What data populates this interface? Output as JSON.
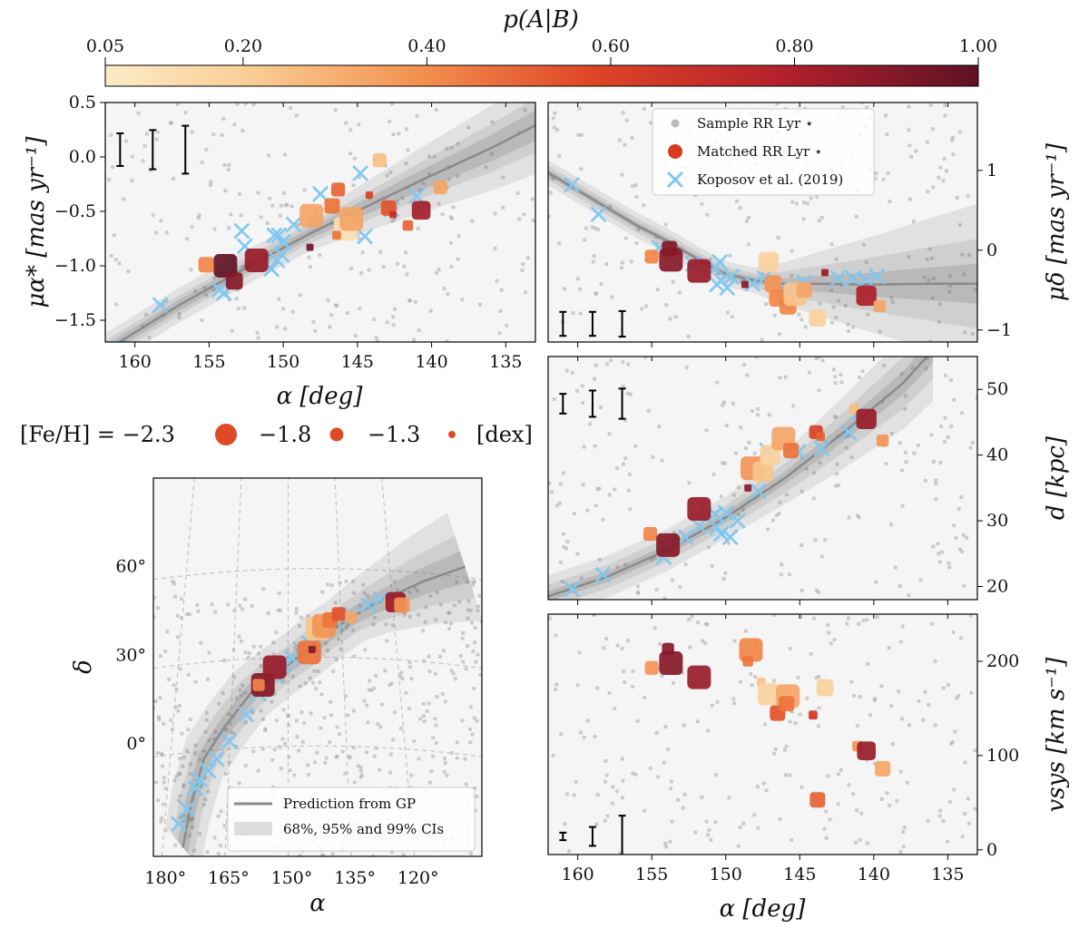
{
  "colorbar": {
    "title": "p(A|B)",
    "ticks": [
      "0.05",
      "0.20",
      "0.40",
      "0.60",
      "0.80",
      "1.00"
    ],
    "tick_values": [
      0.05,
      0.2,
      0.4,
      0.6,
      0.8,
      1.0
    ],
    "colors": [
      "#fcebc7",
      "#f7b97a",
      "#ef7b3e",
      "#d93a1f",
      "#a81d2a",
      "#5e1224"
    ]
  },
  "colors": {
    "sample": "#999999",
    "koposov": "#7fc8f2",
    "gp_line": "#8a8a8a",
    "ci": "#5a5a5a",
    "panel_bg": "#f5f5f5"
  },
  "legend_top": {
    "sample": "Sample RR Lyr ⋆",
    "matched": "Matched RR Lyr ⋆",
    "koposov": "Koposov et al. (2019)"
  },
  "legend_sky": {
    "gp": "Prediction from GP",
    "ci": "68%, 95% and 99% CIs"
  },
  "feh_legend": {
    "label": "[Fe/H] = −2.3",
    "v2": "−1.8",
    "v3": "−1.3",
    "unit": "[dex]"
  },
  "chart_data": [
    {
      "id": "pm_ra",
      "type": "scatter",
      "xlabel": "α [deg]",
      "ylabel": "μα* [mas yr⁻¹]",
      "xlim": [
        162,
        133
      ],
      "ylim": [
        -1.7,
        0.5
      ],
      "xticks": [
        160,
        155,
        150,
        145,
        140,
        135
      ],
      "yticks": [
        -1.5,
        -1.0,
        -0.5,
        0.0,
        0.5
      ],
      "ytick_labels": [
        "−1.5",
        "−1.0",
        "−0.5",
        "0.0",
        "0.5"
      ],
      "gp": [
        [
          162,
          -1.78
        ],
        [
          157,
          -1.36
        ],
        [
          152,
          -0.98
        ],
        [
          148,
          -0.69
        ],
        [
          144,
          -0.43
        ],
        [
          140,
          -0.17
        ],
        [
          136,
          0.08
        ],
        [
          133,
          0.29
        ]
      ],
      "ci_width": [
        0.05,
        0.09,
        0.16
      ],
      "error_bars": [
        {
          "x": 161,
          "half": 0.15
        },
        {
          "x": 158.8,
          "half": 0.18
        },
        {
          "x": 156.6,
          "half": 0.22
        }
      ],
      "koposov": [
        [
          161,
          -1.75
        ],
        [
          158.3,
          -1.36
        ],
        [
          154.3,
          -1.22
        ],
        [
          154,
          -1.25
        ],
        [
          152.8,
          -0.68
        ],
        [
          152.6,
          -0.82
        ],
        [
          151.2,
          -0.98
        ],
        [
          150.8,
          -1.03
        ],
        [
          150.6,
          -0.72
        ],
        [
          150.4,
          -0.95
        ],
        [
          150.3,
          -0.72
        ],
        [
          150.1,
          -0.9
        ],
        [
          150,
          -0.78
        ],
        [
          149.3,
          -0.62
        ],
        [
          147.5,
          -0.34
        ],
        [
          144.8,
          -0.15
        ],
        [
          144.5,
          -0.73
        ],
        [
          142.7,
          -0.48
        ],
        [
          141,
          -0.36
        ]
      ],
      "matched": [
        {
          "x": 153.9,
          "y": -1.0,
          "p": 1.0,
          "feh": -2.3
        },
        {
          "x": 151.8,
          "y": -0.95,
          "p": 0.85,
          "feh": -2.3
        },
        {
          "x": 153.3,
          "y": -1.14,
          "p": 0.9,
          "feh": -1.9
        },
        {
          "x": 155.2,
          "y": -0.99,
          "p": 0.4,
          "feh": -1.8
        },
        {
          "x": 148.1,
          "y": -0.54,
          "p": 0.3,
          "feh": -2.3
        },
        {
          "x": 145.8,
          "y": -0.66,
          "p": 0.1,
          "feh": -2.3
        },
        {
          "x": 145.4,
          "y": -0.57,
          "p": 0.3,
          "feh": -2.3
        },
        {
          "x": 146.7,
          "y": -0.45,
          "p": 0.45,
          "feh": -1.8
        },
        {
          "x": 146.3,
          "y": -0.3,
          "p": 0.5,
          "feh": -1.7
        },
        {
          "x": 143.5,
          "y": -0.03,
          "p": 0.22,
          "feh": -1.7
        },
        {
          "x": 142.9,
          "y": -0.47,
          "p": 0.55,
          "feh": -1.8
        },
        {
          "x": 140.7,
          "y": -0.49,
          "p": 0.82,
          "feh": -2.0
        },
        {
          "x": 139.4,
          "y": -0.28,
          "p": 0.3,
          "feh": -1.7
        },
        {
          "x": 141.6,
          "y": -0.63,
          "p": 0.5,
          "feh": -1.5
        },
        {
          "x": 146.4,
          "y": -0.72,
          "p": 0.45,
          "feh": -1.4
        },
        {
          "x": 144.2,
          "y": -0.35,
          "p": 0.6,
          "feh": -1.3
        },
        {
          "x": 142.6,
          "y": -0.53,
          "p": 0.7,
          "feh": -1.3
        },
        {
          "x": 148.2,
          "y": -0.83,
          "p": 0.95,
          "feh": -1.3
        }
      ]
    },
    {
      "id": "pm_dec",
      "type": "scatter",
      "ylabel": "μδ [mas yr⁻¹]",
      "xlim": [
        162,
        133
      ],
      "ylim": [
        -1.15,
        1.85
      ],
      "xticks": [
        160,
        155,
        150,
        145,
        140,
        135
      ],
      "yticks": [
        -1,
        0,
        1
      ],
      "ytick_labels": [
        "−1",
        "0",
        "1"
      ],
      "gp": [
        [
          162,
          0.97
        ],
        [
          160,
          0.75
        ],
        [
          158,
          0.53
        ],
        [
          156,
          0.31
        ],
        [
          154,
          0.12
        ],
        [
          152,
          -0.1
        ],
        [
          150,
          -0.3
        ],
        [
          148,
          -0.38
        ],
        [
          146,
          -0.42
        ],
        [
          144,
          -0.42
        ],
        [
          140,
          -0.43
        ],
        [
          136,
          -0.42
        ],
        [
          133,
          -0.42
        ]
      ],
      "ci_width": [
        0.04,
        0.09,
        0.16
      ],
      "error_bars": [
        {
          "x": 161,
          "half": 0.15
        },
        {
          "x": 159,
          "half": 0.15
        },
        {
          "x": 157,
          "half": 0.16
        }
      ],
      "koposov": [
        [
          160.4,
          0.82
        ],
        [
          158.6,
          0.45
        ],
        [
          154.5,
          0.03
        ],
        [
          152.2,
          -0.17
        ],
        [
          150.7,
          -0.22
        ],
        [
          150.6,
          -0.43
        ],
        [
          150.4,
          -0.15
        ],
        [
          150.3,
          -0.38
        ],
        [
          149.9,
          -0.47
        ],
        [
          149.6,
          -0.33
        ],
        [
          148.2,
          -0.42
        ],
        [
          147.4,
          -0.35
        ],
        [
          146,
          -0.48
        ],
        [
          145.3,
          -0.55
        ],
        [
          144.7,
          -0.4
        ],
        [
          142.4,
          -0.35
        ],
        [
          141.4,
          -0.35
        ],
        [
          140.5,
          -0.37
        ],
        [
          139.8,
          -0.33
        ]
      ],
      "matched": [
        {
          "x": 153.8,
          "y": 0.02,
          "p": 0.9,
          "feh": -1.8
        },
        {
          "x": 153.7,
          "y": -0.12,
          "p": 0.9,
          "feh": -2.3
        },
        {
          "x": 155,
          "y": -0.08,
          "p": 0.4,
          "feh": -1.7
        },
        {
          "x": 151.8,
          "y": -0.26,
          "p": 0.85,
          "feh": -2.3
        },
        {
          "x": 148.7,
          "y": -0.43,
          "p": 0.9,
          "feh": -1.3
        },
        {
          "x": 147.1,
          "y": -0.15,
          "p": 0.15,
          "feh": -2.1
        },
        {
          "x": 146.8,
          "y": -0.42,
          "p": 0.35,
          "feh": -1.9
        },
        {
          "x": 146.5,
          "y": -0.6,
          "p": 0.4,
          "feh": -1.9
        },
        {
          "x": 145.8,
          "y": -0.7,
          "p": 0.4,
          "feh": -1.9
        },
        {
          "x": 145.3,
          "y": -0.55,
          "p": 0.2,
          "feh": -2.3
        },
        {
          "x": 144.7,
          "y": -0.5,
          "p": 0.3,
          "feh": -1.8
        },
        {
          "x": 143.8,
          "y": -0.85,
          "p": 0.15,
          "feh": -1.9
        },
        {
          "x": 143.3,
          "y": -0.28,
          "p": 0.85,
          "feh": -1.3
        },
        {
          "x": 140.5,
          "y": -0.57,
          "p": 0.8,
          "feh": -2.1
        },
        {
          "x": 139.6,
          "y": -0.7,
          "p": 0.3,
          "feh": -1.6
        }
      ]
    },
    {
      "id": "dist",
      "type": "scatter",
      "ylabel": "d [kpc]",
      "xlim": [
        162,
        133
      ],
      "ylim": [
        18,
        55
      ],
      "xticks": [
        160,
        155,
        150,
        145,
        140,
        135
      ],
      "yticks": [
        20,
        30,
        40,
        50
      ],
      "ytick_labels": [
        "20",
        "30",
        "40",
        "50"
      ],
      "gp": [
        [
          162,
          18.5
        ],
        [
          158,
          21.5
        ],
        [
          154,
          25.5
        ],
        [
          150,
          30.5
        ],
        [
          146,
          36.5
        ],
        [
          142,
          43.5
        ],
        [
          138,
          51
        ],
        [
          136,
          56
        ]
      ],
      "ci_width": [
        0.8,
        1.8,
        3.2
      ],
      "error_bars": [
        {
          "x": 161,
          "half": 1.5
        },
        {
          "x": 159,
          "half": 2.0
        },
        {
          "x": 157,
          "half": 2.3
        }
      ],
      "koposov": [
        [
          160.4,
          19.6
        ],
        [
          158.3,
          21.8
        ],
        [
          154.2,
          24.5
        ],
        [
          152.7,
          27.5
        ],
        [
          151.8,
          29.2
        ],
        [
          150.7,
          31
        ],
        [
          150.6,
          29
        ],
        [
          150.3,
          28
        ],
        [
          150,
          31.2
        ],
        [
          149.7,
          27.5
        ],
        [
          149.2,
          30
        ],
        [
          147.8,
          34.5
        ],
        [
          147.2,
          40.7
        ],
        [
          145.1,
          40.5
        ],
        [
          143.5,
          41
        ],
        [
          141.7,
          43.5
        ],
        [
          141.1,
          46.3
        ]
      ],
      "matched": [
        {
          "x": 155.1,
          "y": 28,
          "p": 0.4,
          "feh": -1.7
        },
        {
          "x": 153.9,
          "y": 26.3,
          "p": 0.9,
          "feh": -2.3
        },
        {
          "x": 151.8,
          "y": 31.8,
          "p": 0.85,
          "feh": -2.3
        },
        {
          "x": 148.5,
          "y": 35,
          "p": 0.9,
          "feh": -1.3
        },
        {
          "x": 148.2,
          "y": 38,
          "p": 0.35,
          "feh": -2.3
        },
        {
          "x": 147.5,
          "y": 37.5,
          "p": 0.2,
          "feh": -2.1
        },
        {
          "x": 147,
          "y": 40,
          "p": 0.15,
          "feh": -2.1
        },
        {
          "x": 146.1,
          "y": 42.5,
          "p": 0.3,
          "feh": -2.3
        },
        {
          "x": 145.6,
          "y": 40.7,
          "p": 0.45,
          "feh": -1.8
        },
        {
          "x": 143.9,
          "y": 43.5,
          "p": 0.6,
          "feh": -1.7
        },
        {
          "x": 143.6,
          "y": 42.8,
          "p": 0.5,
          "feh": -1.4
        },
        {
          "x": 141.3,
          "y": 47,
          "p": 0.22,
          "feh": -1.5
        },
        {
          "x": 140.5,
          "y": 45.5,
          "p": 0.85,
          "feh": -2.1
        },
        {
          "x": 139.4,
          "y": 42.2,
          "p": 0.35,
          "feh": -1.6
        }
      ]
    },
    {
      "id": "vsys",
      "type": "scatter",
      "xlabel": "α [deg]",
      "ylabel": "vsys [km s⁻¹]",
      "xlim": [
        162,
        133
      ],
      "ylim": [
        -5,
        250
      ],
      "xticks": [
        160,
        155,
        150,
        145,
        140,
        135
      ],
      "yticks": [
        0,
        100,
        200
      ],
      "ytick_labels": [
        "0",
        "100",
        "200"
      ],
      "error_bars": [
        {
          "x": 161,
          "half": 4
        },
        {
          "x": 159,
          "half": 10
        },
        {
          "x": 157,
          "half": 22
        }
      ],
      "matched": [
        {
          "x": 155,
          "y": 193,
          "p": 0.35,
          "feh": -1.7
        },
        {
          "x": 153.9,
          "y": 213,
          "p": 0.9,
          "feh": -1.6
        },
        {
          "x": 153.7,
          "y": 198,
          "p": 0.9,
          "feh": -2.3
        },
        {
          "x": 151.8,
          "y": 183,
          "p": 0.85,
          "feh": -2.3
        },
        {
          "x": 148.3,
          "y": 212,
          "p": 0.4,
          "feh": -2.3
        },
        {
          "x": 148.5,
          "y": 200,
          "p": 0.45,
          "feh": -1.5
        },
        {
          "x": 147.6,
          "y": 178,
          "p": 0.2,
          "feh": -1.4
        },
        {
          "x": 147.1,
          "y": 165,
          "p": 0.15,
          "feh": -2.2
        },
        {
          "x": 145.8,
          "y": 163,
          "p": 0.3,
          "feh": -2.3
        },
        {
          "x": 146.5,
          "y": 145,
          "p": 0.55,
          "feh": -1.8
        },
        {
          "x": 145.9,
          "y": 155,
          "p": 0.45,
          "feh": -1.8
        },
        {
          "x": 144.1,
          "y": 143,
          "p": 0.65,
          "feh": -1.4
        },
        {
          "x": 143.3,
          "y": 172,
          "p": 0.15,
          "feh": -1.9
        },
        {
          "x": 141.1,
          "y": 110,
          "p": 0.35,
          "feh": -1.5
        },
        {
          "x": 140.5,
          "y": 105,
          "p": 0.85,
          "feh": -2.0
        },
        {
          "x": 139.4,
          "y": 86,
          "p": 0.3,
          "feh": -1.8
        },
        {
          "x": 143.8,
          "y": 53,
          "p": 0.5,
          "feh": -1.8
        }
      ]
    },
    {
      "id": "sky",
      "type": "scatter",
      "projection": "sky",
      "xlabel": "α",
      "ylabel": "δ",
      "ra_ticks": [
        "180°",
        "165°",
        "150°",
        "135°",
        "120°"
      ],
      "dec_ticks": [
        "0°",
        "30°",
        "60°"
      ],
      "gp": [
        [
          175,
          -35
        ],
        [
          173,
          -20
        ],
        [
          170,
          -5
        ],
        [
          165,
          6
        ],
        [
          159,
          17
        ],
        [
          153,
          24
        ],
        [
          147,
          30
        ],
        [
          142,
          36
        ],
        [
          136,
          42
        ],
        [
          130,
          47
        ],
        [
          124,
          51
        ],
        [
          118,
          55
        ],
        [
          112,
          58
        ],
        [
          108,
          60
        ]
      ],
      "ci_width": [
        2,
        4,
        7
      ],
      "koposov": [
        [
          176,
          -27
        ],
        [
          174,
          -22
        ],
        [
          172,
          -15
        ],
        [
          171,
          -12
        ],
        [
          169,
          -9
        ],
        [
          167,
          -5
        ],
        [
          164,
          1
        ],
        [
          160,
          10
        ],
        [
          157,
          17
        ],
        [
          155,
          20
        ],
        [
          153,
          23
        ],
        [
          152,
          26
        ],
        [
          151,
          27
        ],
        [
          149,
          29
        ],
        [
          147,
          32
        ],
        [
          145,
          34
        ],
        [
          142,
          38
        ],
        [
          139,
          42
        ],
        [
          135,
          44
        ],
        [
          131,
          47
        ],
        [
          128,
          49
        ]
      ],
      "matched": [
        {
          "x": 156,
          "y": 20,
          "p": 0.9,
          "feh": -2.3
        },
        {
          "x": 157,
          "y": 20,
          "p": 0.4,
          "feh": -1.6
        },
        {
          "x": 153.2,
          "y": 26,
          "p": 0.85,
          "feh": -2.3
        },
        {
          "x": 145,
          "y": 31,
          "p": 0.45,
          "feh": -2.3
        },
        {
          "x": 144.3,
          "y": 32,
          "p": 0.9,
          "feh": -1.3
        },
        {
          "x": 143,
          "y": 39,
          "p": 0.2,
          "feh": -2.3
        },
        {
          "x": 141.5,
          "y": 40,
          "p": 0.35,
          "feh": -2.3
        },
        {
          "x": 140,
          "y": 42,
          "p": 0.45,
          "feh": -1.8
        },
        {
          "x": 138,
          "y": 44,
          "p": 0.55,
          "feh": -1.7
        },
        {
          "x": 135,
          "y": 43,
          "p": 0.3,
          "feh": -1.6
        },
        {
          "x": 126,
          "y": 48,
          "p": 0.22,
          "feh": -1.5
        },
        {
          "x": 124.5,
          "y": 48,
          "p": 0.85,
          "feh": -2.1
        },
        {
          "x": 123,
          "y": 47,
          "p": 0.35,
          "feh": -1.8
        }
      ]
    }
  ]
}
